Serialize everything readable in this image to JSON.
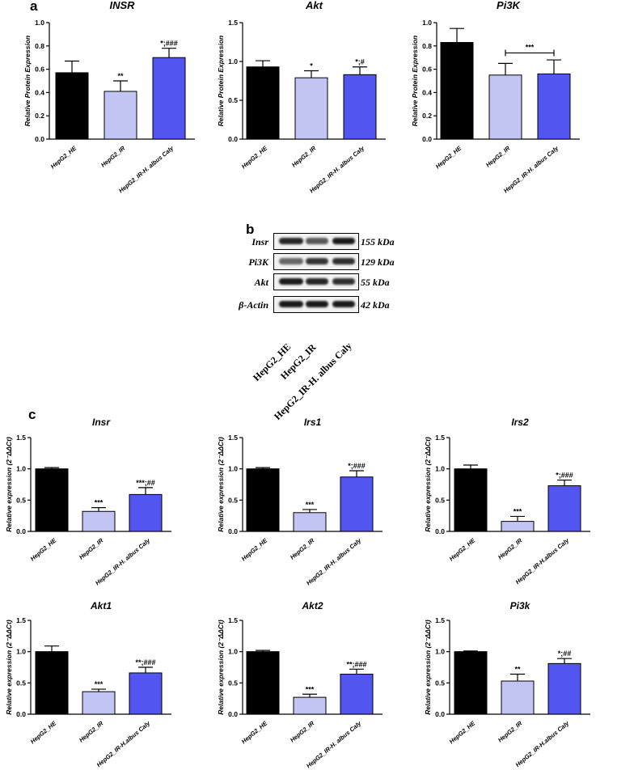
{
  "panel_letters": {
    "a": "a",
    "b": "b",
    "c": "c"
  },
  "colors": {
    "he": "#000000",
    "ir": "#c2c4f4",
    "caly": "#5355f0"
  },
  "chart_data": [
    {
      "type": "bar",
      "title": "INSR",
      "ylabel": "Relative Protein Expression",
      "categories": [
        "HepG2_HE",
        "HepG2_IR",
        "HepG2_IR-H. albus Caly"
      ],
      "values": [
        0.57,
        0.41,
        0.7
      ],
      "errors": [
        0.1,
        0.09,
        0.08
      ],
      "significance": [
        "",
        "**",
        "*;###"
      ],
      "bracket_label": "",
      "ylim": [
        0,
        1.0
      ],
      "yticks": [
        "0.0",
        "0.2",
        "0.4",
        "0.6",
        "0.8",
        "1.0"
      ]
    },
    {
      "type": "bar",
      "title": "Akt",
      "ylabel": "Relative Protein Expression",
      "categories": [
        "HepG2_HE",
        "HepG2_IR",
        "HepG2_IR-H. albus Caly"
      ],
      "values": [
        0.93,
        0.79,
        0.83
      ],
      "errors": [
        0.08,
        0.09,
        0.1
      ],
      "significance": [
        "",
        "*",
        "*;#"
      ],
      "bracket_label": "",
      "ylim": [
        0,
        1.5
      ],
      "yticks": [
        "0.0",
        "0.5",
        "1.0",
        "1.5"
      ]
    },
    {
      "type": "bar",
      "title": "Pi3K",
      "ylabel": "Relative Protein Expression",
      "categories": [
        "HepG2_HE",
        "HepG2_IR",
        "HepG2_IR-H. albus Caly"
      ],
      "values": [
        0.83,
        0.55,
        0.56
      ],
      "errors": [
        0.12,
        0.1,
        0.12
      ],
      "significance": [
        "",
        "",
        ""
      ],
      "bracket_label": "***",
      "ylim": [
        0,
        1.0
      ],
      "yticks": [
        "0.0",
        "0.2",
        "0.4",
        "0.6",
        "0.8",
        "1.0"
      ]
    },
    {
      "type": "bar",
      "title": "Insr",
      "ylabel": "Relative expression (2⁻ΔΔCt)",
      "categories": [
        "HepG2_HE",
        "HepG2_IR",
        "HepG2_IR-H. albus Caly"
      ],
      "values": [
        1.0,
        0.32,
        0.59
      ],
      "errors": [
        0.02,
        0.06,
        0.11
      ],
      "significance": [
        "",
        "***",
        "***;##"
      ],
      "bracket_label": "",
      "ylim": [
        0,
        1.5
      ],
      "yticks": [
        "0.0",
        "0.5",
        "1.0",
        "1.5"
      ]
    },
    {
      "type": "bar",
      "title": "Irs1",
      "ylabel": "Relative expression (2⁻ΔΔCt)",
      "categories": [
        "HepG2_HE",
        "HepG2_IR",
        "HepG2_IR-H. albus Caly"
      ],
      "values": [
        1.0,
        0.3,
        0.87
      ],
      "errors": [
        0.02,
        0.05,
        0.1
      ],
      "significance": [
        "",
        "***",
        "*;###"
      ],
      "bracket_label": "",
      "ylim": [
        0,
        1.5
      ],
      "yticks": [
        "0.0",
        "0.5",
        "1.0",
        "1.5"
      ]
    },
    {
      "type": "bar",
      "title": "Irs2",
      "ylabel": "Relative expression (2⁻ΔΔCt)",
      "categories": [
        "HepG2_HE",
        "HepG2_IR",
        "HepG2_IR-H.albus Caly"
      ],
      "values": [
        1.0,
        0.16,
        0.73
      ],
      "errors": [
        0.06,
        0.08,
        0.09
      ],
      "significance": [
        "",
        "***",
        "*;###"
      ],
      "bracket_label": "",
      "ylim": [
        0,
        1.5
      ],
      "yticks": [
        "0.0",
        "0.5",
        "1.0",
        "1.5"
      ]
    },
    {
      "type": "bar",
      "title": "Akt1",
      "ylabel": "Relative expression (2⁻ΔΔCt)",
      "categories": [
        "HepG2_HE",
        "HepG2_IR",
        "HepG2_IR-H.albus Caly"
      ],
      "values": [
        1.0,
        0.36,
        0.66
      ],
      "errors": [
        0.09,
        0.04,
        0.09
      ],
      "significance": [
        "",
        "***",
        "**;###"
      ],
      "bracket_label": "",
      "ylim": [
        0,
        1.5
      ],
      "yticks": [
        "0.0",
        "0.5",
        "1.0",
        "1.5"
      ]
    },
    {
      "type": "bar",
      "title": "Akt2",
      "ylabel": "Relative expression (2⁻ΔΔCt)",
      "categories": [
        "HepG2_HE",
        "HepG2_IR",
        "HepG2_IR-H. albus Caly"
      ],
      "values": [
        1.0,
        0.27,
        0.64
      ],
      "errors": [
        0.02,
        0.05,
        0.08
      ],
      "significance": [
        "",
        "***",
        "**;###"
      ],
      "bracket_label": "",
      "ylim": [
        0,
        1.5
      ],
      "yticks": [
        "0.0",
        "0.5",
        "1.0",
        "1.5"
      ]
    },
    {
      "type": "bar",
      "title": "Pi3k",
      "ylabel": "Relative expression (2⁻ΔΔCt)",
      "categories": [
        "HepG2_HE",
        "HepG2_IR",
        "HepG2_IR-H.albus Caly"
      ],
      "values": [
        1.0,
        0.53,
        0.81
      ],
      "errors": [
        0.01,
        0.11,
        0.08
      ],
      "significance": [
        "",
        "**",
        "*;##"
      ],
      "bracket_label": "",
      "ylim": [
        0,
        1.5
      ],
      "yticks": [
        "0.0",
        "0.5",
        "1.0",
        "1.5"
      ]
    }
  ],
  "blot": {
    "rows": [
      {
        "protein": "Insr",
        "kda": "155 kDa",
        "intensity": [
          0.9,
          0.55,
          1.0
        ]
      },
      {
        "protein": "Pi3K",
        "kda": "129 kDa",
        "intensity": [
          0.45,
          0.8,
          0.85
        ]
      },
      {
        "protein": "Akt",
        "kda": "55 kDa",
        "intensity": [
          1.0,
          0.9,
          0.85
        ]
      },
      {
        "protein": "β-Actin",
        "kda": "42 kDa",
        "intensity": [
          1.0,
          1.0,
          1.0
        ]
      }
    ],
    "lanes": [
      "HepG2_HE",
      "HepG2_IR",
      "HepG2_IR-H. albus Caly"
    ]
  }
}
